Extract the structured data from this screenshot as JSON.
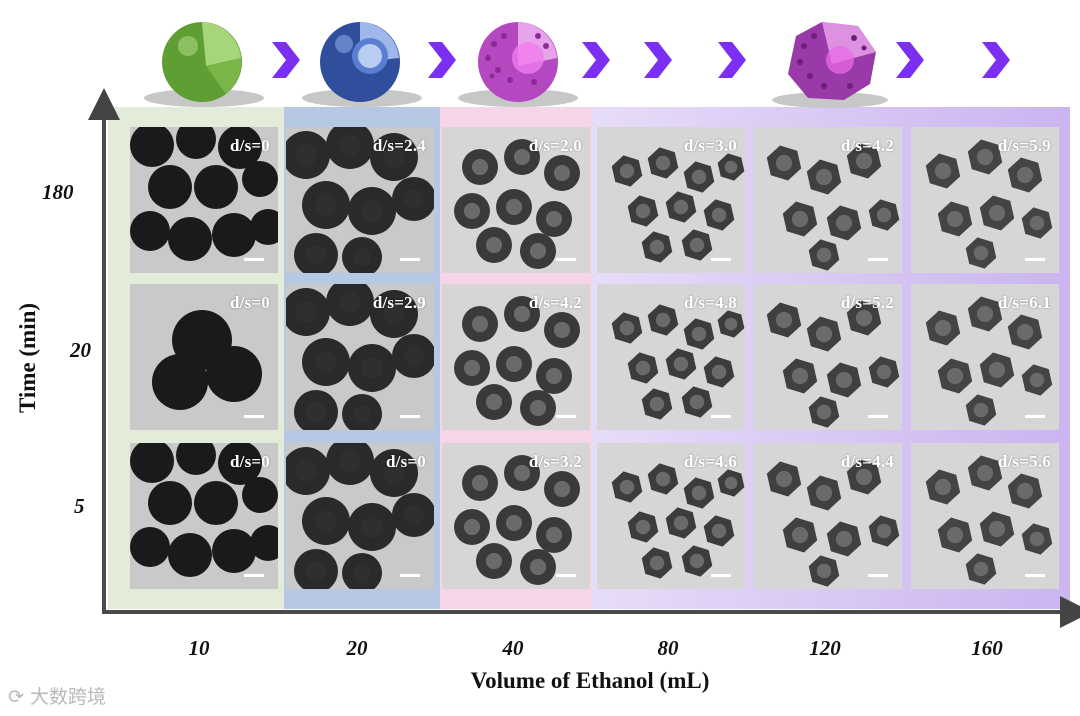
{
  "axes": {
    "y_label": "Time (min)",
    "x_label": "Volume of Ethanol (mL)",
    "y_ticks": [
      "180",
      "20",
      "5"
    ],
    "x_ticks": [
      "10",
      "20",
      "40",
      "80",
      "120",
      "160"
    ]
  },
  "rows": [
    {
      "time": "180",
      "cells": [
        "d/s=0",
        "d/s=2.4",
        "d/s=2.0",
        "d/s=3.0",
        "d/s=4.2",
        "d/s=5.9"
      ]
    },
    {
      "time": "20",
      "cells": [
        "d/s=0",
        "d/s=2.9",
        "d/s=4.2",
        "d/s=4.8",
        "d/s=5.2",
        "d/s=6.1"
      ]
    },
    {
      "time": "5",
      "cells": [
        "d/s=0",
        "d/s=0",
        "d/s=3.2",
        "d/s=4.6",
        "d/s=4.4",
        "d/s=5.6"
      ]
    }
  ],
  "column_colors": [
    "#e3ecd9",
    "#b7c8e4",
    "#f7d5e8",
    "#d9c6f4",
    "#d9c6f4",
    "#d9c6f4"
  ],
  "header_icons": [
    "solid-sphere-icon",
    "core-shell-sphere-icon",
    "porous-hollow-sphere-icon",
    "porous-hollow-polyhedron-icon"
  ],
  "header_icon_colors": [
    "#6aa83a",
    "#3f65b5",
    "#c050c8",
    "#9b3ba8"
  ],
  "accent_color": "#7b2ff2",
  "watermark": "大数跨境"
}
